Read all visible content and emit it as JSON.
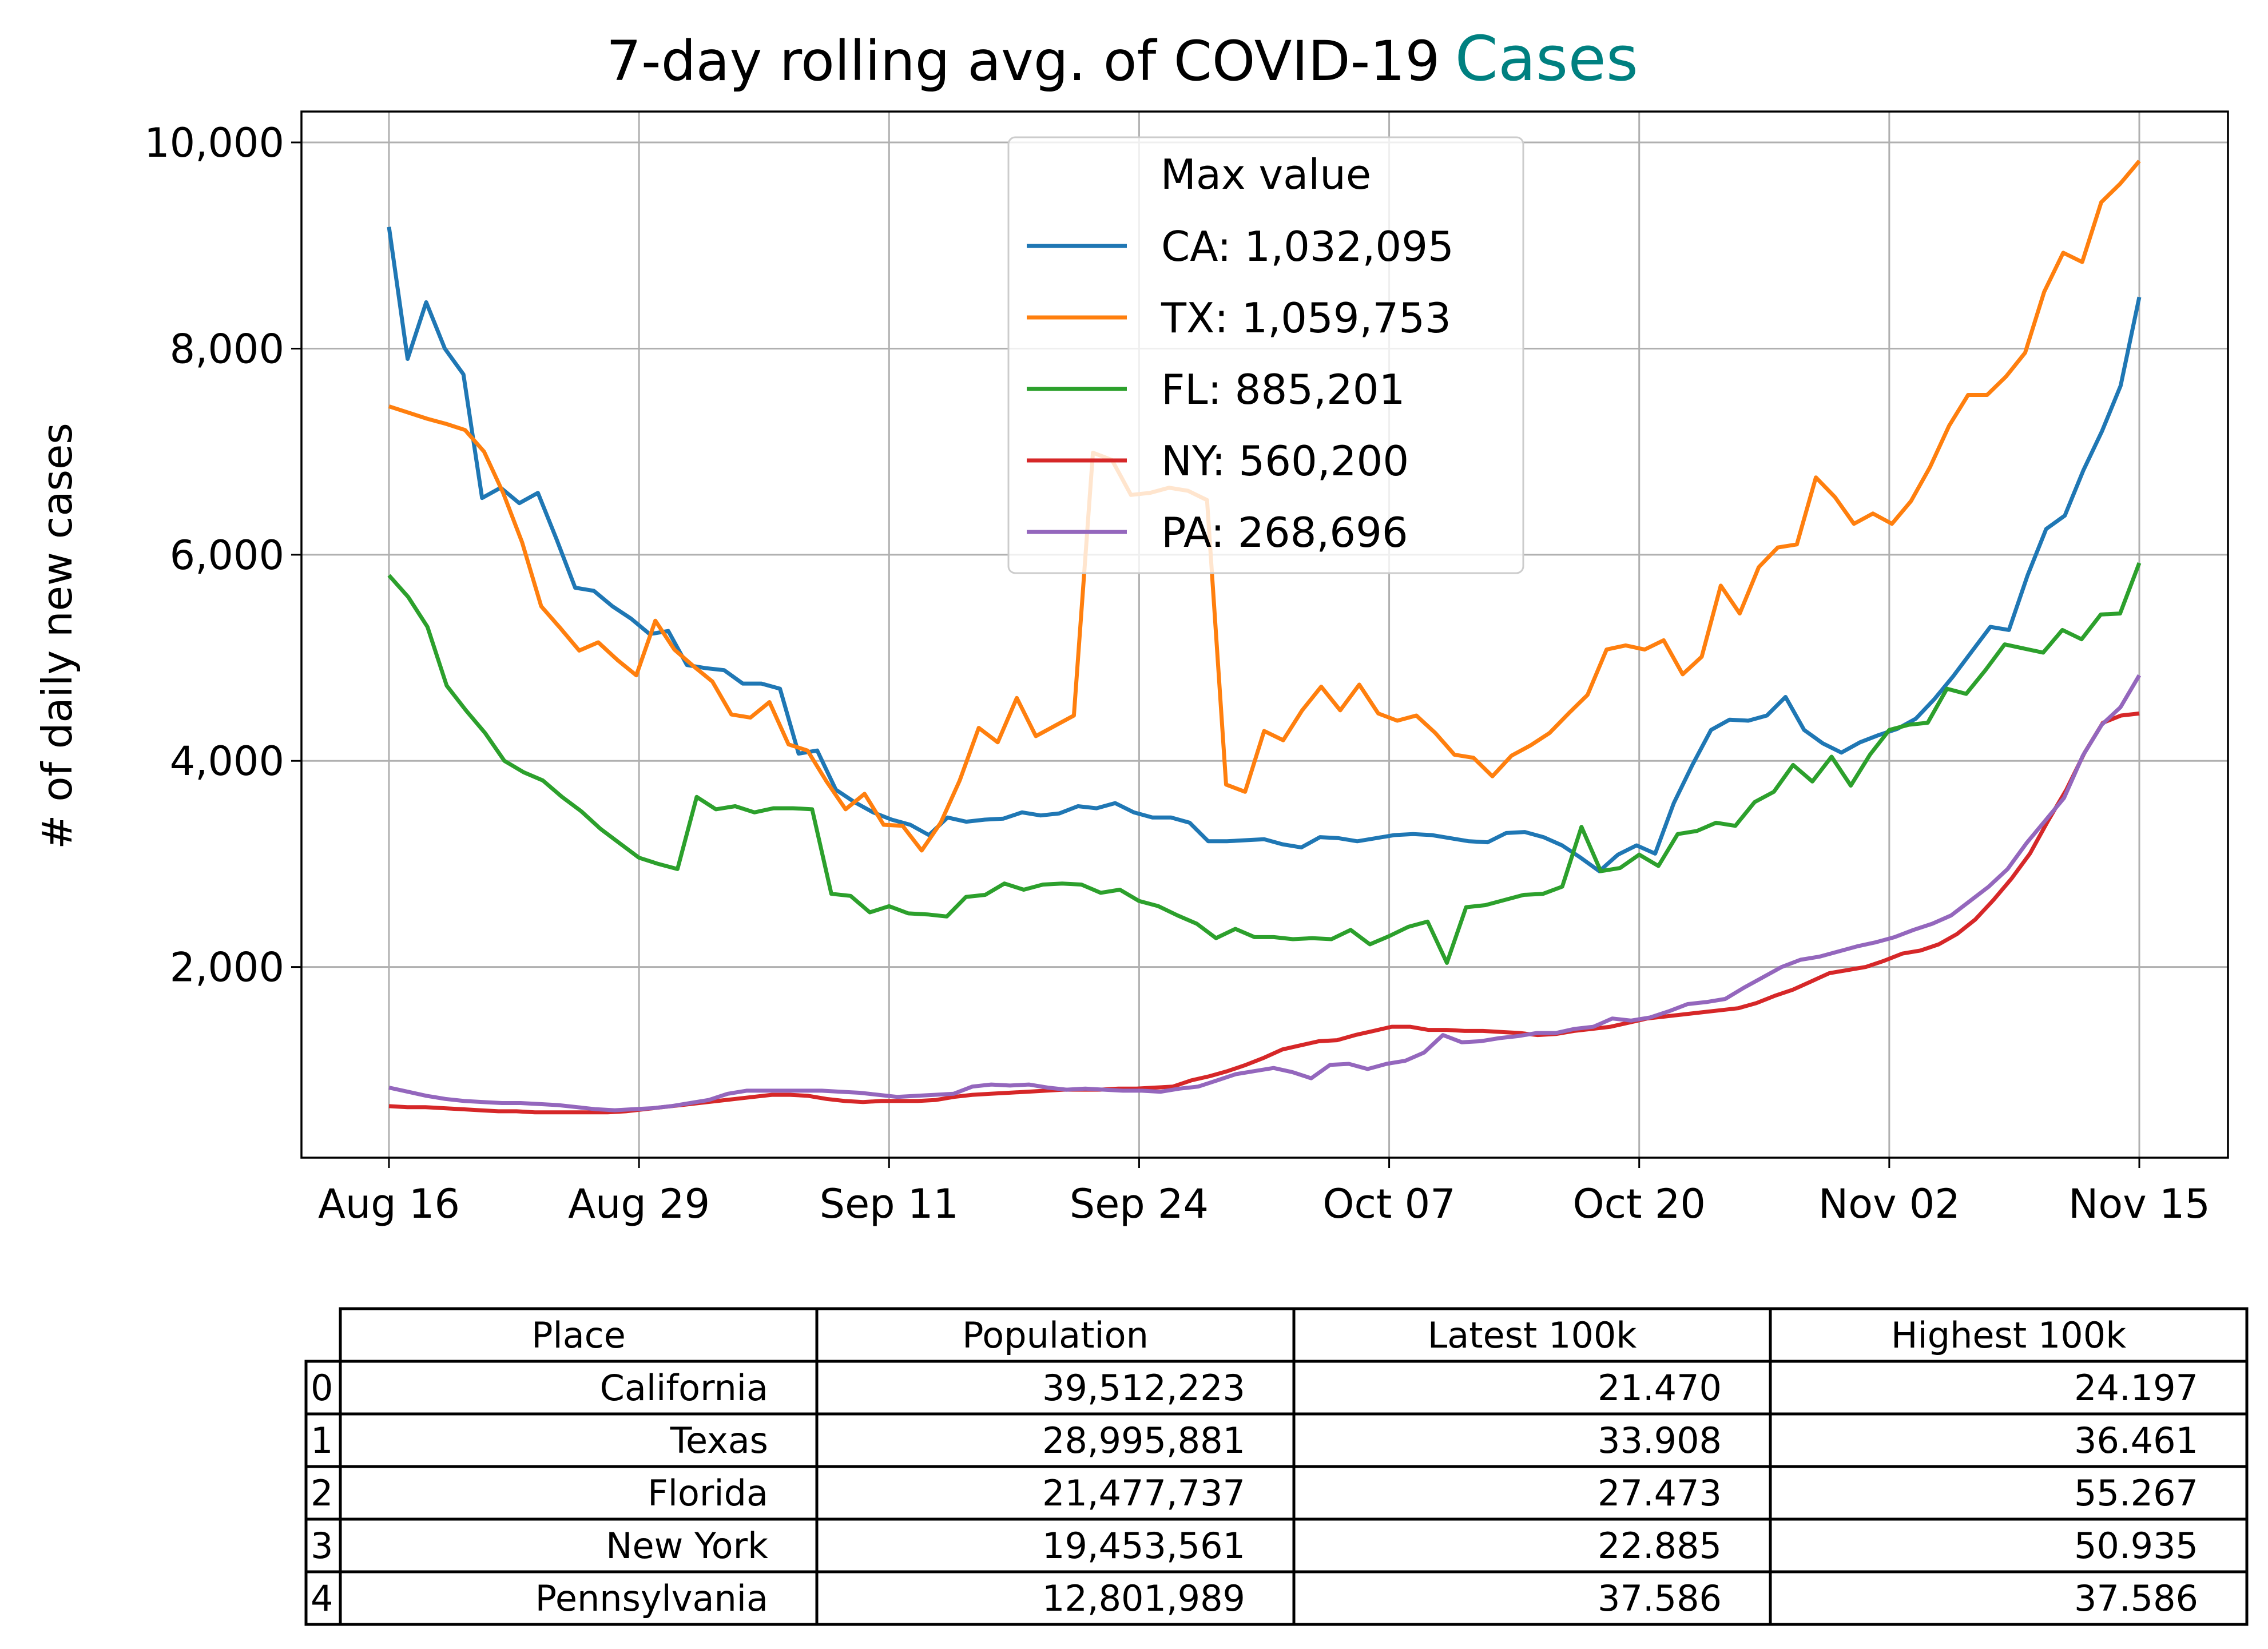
{
  "chart_data": {
    "type": "line",
    "title": "7-day rolling avg. of COVID-19",
    "title_highlight": "Cases",
    "title_highlight_color": "#008080",
    "xlabel": "",
    "ylabel": "# of daily new cases",
    "x_start": "2020-08-16",
    "x_tick_labels": [
      "Aug 16",
      "Aug 29",
      "Sep 11",
      "Sep 24",
      "Oct 07",
      "Oct 20",
      "Nov 02",
      "Nov 15"
    ],
    "y_ticks": [
      2000,
      4000,
      6000,
      8000,
      10000
    ],
    "y_tick_labels": [
      "2,000",
      "4,000",
      "6,000",
      "8,000",
      "10,000"
    ],
    "ylim": [
      150,
      10300
    ],
    "grid": true,
    "legend": {
      "title": "Max value",
      "location": "top-center",
      "entries": [
        "CA: 1,032,095",
        "TX: 1,059,753",
        "FL: 885,201",
        "NY: 560,200",
        "PA: 268,696"
      ]
    },
    "series": [
      {
        "name": "CA",
        "color": "#1f77b4",
        "values": [
          9180,
          7900,
          8450,
          8000,
          7750,
          6550,
          6650,
          6500,
          6600,
          6150,
          5680,
          5650,
          5500,
          5380,
          5230,
          5260,
          4930,
          4900,
          4880,
          4750,
          4750,
          4700,
          4070,
          4100,
          3720,
          3600,
          3500,
          3430,
          3380,
          3280,
          3450,
          3410,
          3430,
          3440,
          3500,
          3470,
          3490,
          3560,
          3540,
          3590,
          3500,
          3450,
          3450,
          3400,
          3220,
          3220,
          3230,
          3240,
          3190,
          3160,
          3260,
          3250,
          3220,
          3250,
          3280,
          3290,
          3280,
          3250,
          3220,
          3210,
          3300,
          3310,
          3260,
          3180,
          3060,
          2930,
          3090,
          3180,
          3100,
          3590,
          3960,
          4300,
          4400,
          4390,
          4440,
          4620,
          4300,
          4170,
          4080,
          4180,
          4250,
          4310,
          4410,
          4600,
          4820,
          5060,
          5300,
          5270,
          5800,
          6250,
          6380,
          6820,
          7200,
          7640,
          8500
        ]
      },
      {
        "name": "TX",
        "color": "#ff7f0e",
        "values": [
          7440,
          7380,
          7320,
          7270,
          7210,
          7000,
          6600,
          6120,
          5500,
          5290,
          5070,
          5150,
          4980,
          4830,
          5360,
          5080,
          4920,
          4770,
          4450,
          4420,
          4570,
          4160,
          4100,
          3800,
          3530,
          3680,
          3380,
          3370,
          3130,
          3400,
          3810,
          4320,
          4180,
          4610,
          4240,
          4340,
          4440,
          6990,
          6920,
          6580,
          6600,
          6650,
          6620,
          6530,
          3770,
          3700,
          4290,
          4200,
          4490,
          4720,
          4490,
          4740,
          4460,
          4390,
          4440,
          4270,
          4060,
          4030,
          3850,
          4050,
          4150,
          4270,
          4460,
          4640,
          5080,
          5120,
          5080,
          5170,
          4840,
          5010,
          5700,
          5430,
          5880,
          6070,
          6100,
          6750,
          6560,
          6300,
          6400,
          6300,
          6520,
          6850,
          7250,
          7550,
          7550,
          7730,
          7960,
          8550,
          8930,
          8840,
          9420,
          9600,
          9820
        ]
      },
      {
        "name": "FL",
        "color": "#2ca02c",
        "values": [
          5800,
          5590,
          5300,
          4730,
          4490,
          4270,
          4000,
          3890,
          3810,
          3650,
          3510,
          3340,
          3200,
          3060,
          3000,
          2950,
          3650,
          3530,
          3560,
          3500,
          3540,
          3540,
          3530,
          2710,
          2690,
          2530,
          2590,
          2520,
          2510,
          2490,
          2680,
          2700,
          2810,
          2750,
          2800,
          2810,
          2800,
          2720,
          2750,
          2640,
          2590,
          2500,
          2420,
          2280,
          2370,
          2290,
          2290,
          2270,
          2280,
          2270,
          2360,
          2220,
          2300,
          2390,
          2440,
          2040,
          2580,
          2600,
          2650,
          2700,
          2710,
          2780,
          3360,
          2930,
          2960,
          3090,
          2980,
          3290,
          3320,
          3400,
          3370,
          3600,
          3700,
          3960,
          3800,
          4040,
          3760,
          4060,
          4300,
          4350,
          4370,
          4700,
          4650,
          4880,
          5130,
          5090,
          5050,
          5270,
          5180,
          5420,
          5430,
          5920
        ]
      },
      {
        "name": "NY",
        "color": "#d62728",
        "values": [
          650,
          640,
          640,
          630,
          620,
          610,
          600,
          600,
          590,
          590,
          590,
          590,
          590,
          600,
          620,
          640,
          660,
          680,
          700,
          720,
          740,
          760,
          760,
          750,
          720,
          700,
          690,
          700,
          700,
          700,
          710,
          740,
          760,
          770,
          780,
          790,
          800,
          810,
          810,
          810,
          820,
          820,
          830,
          840,
          900,
          940,
          990,
          1050,
          1120,
          1200,
          1240,
          1280,
          1290,
          1340,
          1380,
          1420,
          1420,
          1390,
          1390,
          1380,
          1380,
          1370,
          1360,
          1340,
          1350,
          1380,
          1400,
          1420,
          1460,
          1500,
          1520,
          1540,
          1560,
          1580,
          1600,
          1650,
          1720,
          1780,
          1860,
          1940,
          1970,
          2000,
          2060,
          2130,
          2160,
          2220,
          2320,
          2460,
          2650,
          2860,
          3100,
          3420,
          3720,
          4080,
          4370,
          4440,
          4460
        ]
      },
      {
        "name": "PA",
        "color": "#9467bd",
        "values": [
          830,
          790,
          750,
          720,
          700,
          690,
          680,
          680,
          670,
          660,
          640,
          620,
          610,
          620,
          630,
          650,
          680,
          710,
          770,
          800,
          800,
          800,
          800,
          800,
          790,
          780,
          760,
          740,
          750,
          760,
          770,
          840,
          860,
          850,
          860,
          830,
          810,
          820,
          810,
          800,
          800,
          790,
          820,
          840,
          900,
          960,
          990,
          1020,
          980,
          920,
          1050,
          1060,
          1010,
          1060,
          1090,
          1170,
          1340,
          1270,
          1280,
          1310,
          1330,
          1360,
          1360,
          1400,
          1420,
          1500,
          1480,
          1510,
          1570,
          1640,
          1660,
          1690,
          1800,
          1900,
          2000,
          2070,
          2100,
          2150,
          2200,
          2240,
          2290,
          2360,
          2420,
          2500,
          2640,
          2780,
          2950,
          3200,
          3420,
          3640,
          4050,
          4350,
          4520,
          4830
        ]
      }
    ]
  },
  "table": {
    "headers": [
      "Place",
      "Population",
      "Latest 100k",
      "Highest 100k"
    ],
    "rows": [
      {
        "index": "0",
        "place": "California",
        "population": "39,512,223",
        "latest": "21.470",
        "highest": "24.197"
      },
      {
        "index": "1",
        "place": "Texas",
        "population": "28,995,881",
        "latest": "33.908",
        "highest": "36.461"
      },
      {
        "index": "2",
        "place": "Florida",
        "population": "21,477,737",
        "latest": "27.473",
        "highest": "55.267"
      },
      {
        "index": "3",
        "place": "New York",
        "population": "19,453,561",
        "latest": "22.885",
        "highest": "50.935"
      },
      {
        "index": "4",
        "place": "Pennsylvania",
        "population": "12,801,989",
        "latest": "37.586",
        "highest": "37.586"
      }
    ]
  }
}
